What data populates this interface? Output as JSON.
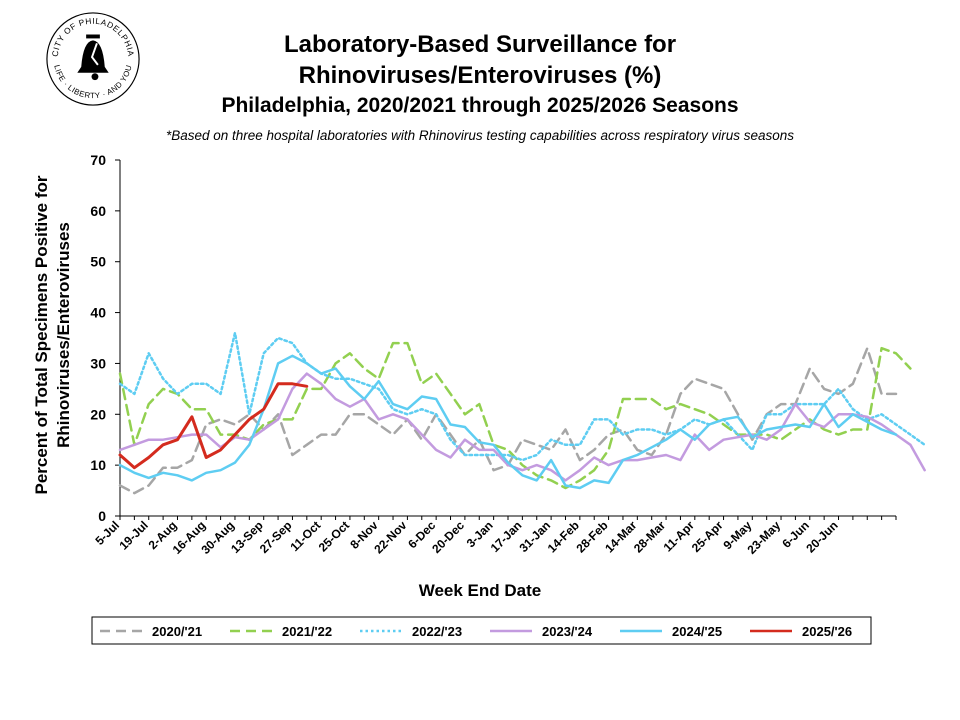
{
  "header": {
    "title_line1": "Laboratory-Based Surveillance for",
    "title_line2": "Rhinoviruses/Enteroviruses (%)",
    "subtitle": "Philadelphia, 2020/2021 through 2025/2026 Seasons",
    "note": "*Based on three hospital laboratories with Rhinovirus testing capabilities across respiratory virus seasons"
  },
  "seal": {
    "text_top": "CITY OF PHILADELPHIA",
    "text_bottom": "LIFE · LIBERTY · AND YOU"
  },
  "chart_data": {
    "type": "line",
    "xlabel": "Week End Date",
    "ylabel_line1": "Percent of Total Specimens Positive for",
    "ylabel_line2": "Rhinoviruses/Enteroviruses",
    "ylim": [
      0,
      70
    ],
    "yticks": [
      0,
      10,
      20,
      30,
      40,
      50,
      60,
      70
    ],
    "xtick_labels": [
      "5-Jul",
      "19-Jul",
      "2-Aug",
      "16-Aug",
      "30-Aug",
      "13-Sep",
      "27-Sep",
      "11-Oct",
      "25-Oct",
      "8-Nov",
      "22-Nov",
      "6-Dec",
      "20-Dec",
      "3-Jan",
      "17-Jan",
      "31-Jan",
      "14-Feb",
      "28-Feb",
      "14-Mar",
      "28-Mar",
      "11-Apr",
      "25-Apr",
      "9-May",
      "23-May",
      "6-Jun",
      "20-Jun"
    ],
    "grid": false,
    "legend_position": "bottom",
    "series": [
      {
        "name": "2020/'21",
        "color": "#a6a6a6",
        "style": "dashed",
        "values": [
          6,
          4.5,
          6,
          9.5,
          9.5,
          11,
          18,
          19,
          18,
          20,
          17,
          20,
          12,
          14,
          16,
          16,
          20,
          20,
          18,
          16,
          19,
          15,
          20,
          16,
          12,
          15,
          9,
          10,
          15,
          14,
          13,
          17,
          11,
          13,
          16,
          17,
          13,
          12,
          16,
          24,
          27,
          26,
          25,
          20,
          15,
          20,
          22,
          22,
          29,
          25,
          24,
          26,
          33,
          24,
          24
        ]
      },
      {
        "name": "2021/'22",
        "color": "#92d050",
        "style": "dashed",
        "values": [
          28,
          14,
          22,
          25,
          24,
          21,
          21,
          16,
          16,
          15,
          18,
          19,
          19,
          25,
          25,
          30,
          32,
          29,
          27,
          34,
          34,
          26,
          28,
          24,
          20,
          22,
          14,
          13,
          10,
          8,
          7,
          5.5,
          7,
          9,
          13,
          23,
          23,
          23,
          21,
          22,
          21,
          20,
          18,
          16,
          16,
          16,
          15,
          17,
          19,
          17,
          16,
          17,
          17,
          33,
          32,
          29
        ]
      },
      {
        "name": "2022/'23",
        "color": "#5ecdf2",
        "style": "dotted",
        "values": [
          26,
          24,
          32,
          27,
          24,
          26,
          26,
          24,
          36,
          20,
          32,
          35,
          34,
          30,
          28,
          27,
          27,
          26,
          25,
          21,
          20,
          21,
          20,
          15,
          12,
          12,
          12,
          12,
          11,
          12,
          15,
          14,
          14,
          19,
          19,
          16,
          17,
          17,
          16,
          17,
          19,
          18,
          19,
          16,
          13,
          20,
          20,
          22,
          22,
          22,
          25,
          21,
          19,
          20,
          18,
          16,
          14
        ]
      },
      {
        "name": "2023/'24",
        "color": "#c39bdf",
        "style": "solid",
        "values": [
          13,
          14,
          15,
          15,
          15.5,
          16,
          16,
          13.5,
          15.5,
          15,
          17,
          19,
          25,
          28,
          26,
          23,
          21.5,
          23,
          19,
          20,
          19,
          16,
          13,
          11.5,
          15,
          13,
          13,
          10,
          9,
          10,
          9,
          7,
          9,
          11.5,
          10,
          11,
          11,
          11.5,
          12,
          11,
          16,
          13,
          15,
          15.5,
          16,
          15,
          17,
          22,
          18.5,
          17.5,
          20,
          20,
          19.5,
          18,
          16,
          14,
          9
        ]
      },
      {
        "name": "2024/'25",
        "color": "#5ecdf2",
        "style": "solid",
        "values": [
          10,
          8.5,
          7.5,
          8.5,
          8,
          7,
          8.5,
          9,
          10.5,
          14,
          21,
          30,
          31.5,
          30,
          28,
          29,
          25.5,
          23,
          26.5,
          22,
          21,
          23.5,
          23,
          18,
          17.5,
          14.5,
          14,
          10.5,
          8,
          7,
          11,
          6,
          5.5,
          7,
          6.5,
          11,
          12,
          13.5,
          15,
          17,
          15,
          18,
          19,
          19.5,
          15.5,
          17,
          17.5,
          18,
          17.5,
          22,
          17.5,
          20,
          18.5,
          17,
          16
        ]
      },
      {
        "name": "2025/'26",
        "color": "#d42b1e",
        "style": "solid",
        "values": [
          12,
          9.5,
          11.5,
          14,
          15,
          19.5,
          11.5,
          13,
          16,
          19,
          21,
          26,
          26,
          25.5
        ]
      }
    ]
  }
}
